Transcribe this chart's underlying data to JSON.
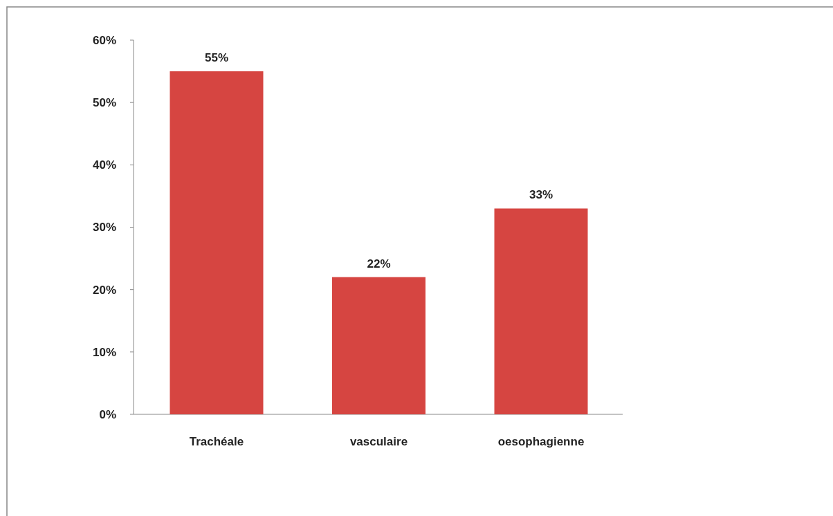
{
  "chart_data": {
    "type": "bar",
    "categories": [
      "Trachéale",
      "vasculaire",
      "oesophagienne"
    ],
    "values": [
      55,
      22,
      33
    ],
    "color": "#d64541",
    "value_labels": [
      "55%",
      "22%",
      "33%"
    ],
    "ylim": [
      0,
      60
    ],
    "yticks": [
      {
        "value": 0,
        "label": "0%"
      },
      {
        "value": 10,
        "label": "10%"
      },
      {
        "value": 20,
        "label": "20%"
      },
      {
        "value": 30,
        "label": "30%"
      },
      {
        "value": 40,
        "label": "40%"
      },
      {
        "value": 50,
        "label": "50%"
      },
      {
        "value": 60,
        "label": "60%"
      }
    ]
  }
}
